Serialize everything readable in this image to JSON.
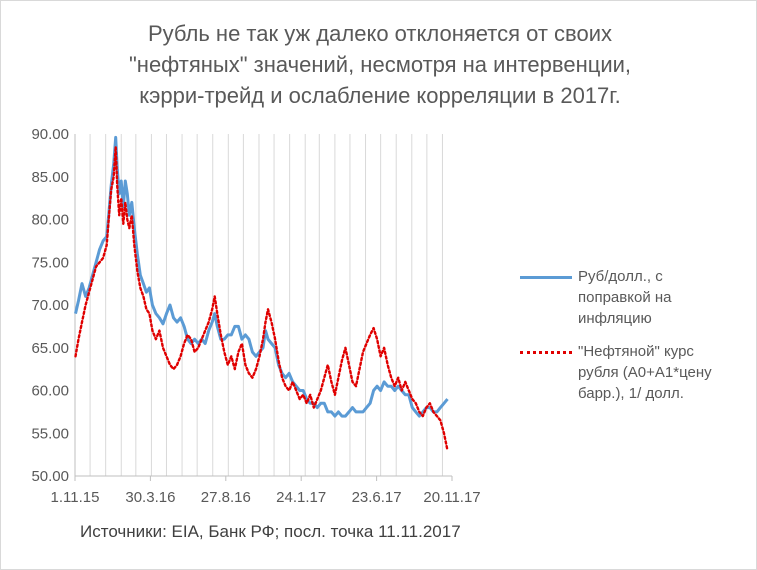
{
  "title_lines": [
    "Рубль не так уж далеко отклоняется от своих",
    "\"нефтяных\" значений, несмотря на интервенции,",
    "кэрри-трейд и ослабление корреляции в 2017г."
  ],
  "source_text": "Источники: EIA, Банк РФ; посл. точка 11.11.2017",
  "legend": {
    "series_0": [
      "Руб/долл., с",
      "поправкой на",
      "инфляцию"
    ],
    "series_1": [
      "\"Нефтяной\" курс",
      "рубля (A0+A1*цену",
      "барр.), 1/ долл."
    ]
  },
  "colors": {
    "series_0": "#5b9bd5",
    "series_1": "#e00000",
    "grid": "#d9d9d9",
    "axis": "#bfbfbf"
  },
  "chart_data": {
    "type": "line",
    "title": "Рубль не так уж далеко отклоняется от своих \"нефтяных\" значений, несмотря на интервенции, кэрри-трейд и ослабление корреляции в 2017г.",
    "xlabel": "",
    "ylabel": "",
    "ylim": [
      50,
      90
    ],
    "xlim": [
      "2015-11-01",
      "2017-11-20"
    ],
    "y_ticks": [
      "50.00",
      "55.00",
      "60.00",
      "65.00",
      "70.00",
      "75.00",
      "80.00",
      "85.00",
      "90.00"
    ],
    "x_ticks": [
      {
        "label": "1.11.15",
        "date": "2015-11-01"
      },
      {
        "label": "30.3.16",
        "date": "2016-03-30"
      },
      {
        "label": "27.8.16",
        "date": "2016-08-27"
      },
      {
        "label": "24.1.17",
        "date": "2017-01-24"
      },
      {
        "label": "23.6.17",
        "date": "2017-06-23"
      },
      {
        "label": "20.11.17",
        "date": "2017-11-20"
      }
    ],
    "grid": "vertical",
    "legend_position": "right",
    "series": [
      {
        "name": "Руб/долл., с поправкой на инфляцию",
        "style": "solid",
        "points": [
          [
            "2015-11-02",
            69.0
          ],
          [
            "2015-11-08",
            70.5
          ],
          [
            "2015-11-15",
            72.5
          ],
          [
            "2015-11-22",
            71.0
          ],
          [
            "2015-11-29",
            72.0
          ],
          [
            "2015-12-06",
            73.5
          ],
          [
            "2015-12-13",
            75.0
          ],
          [
            "2015-12-20",
            76.5
          ],
          [
            "2015-12-27",
            77.5
          ],
          [
            "2016-01-03",
            78.0
          ],
          [
            "2016-01-07",
            80.5
          ],
          [
            "2016-01-12",
            84.0
          ],
          [
            "2016-01-17",
            86.5
          ],
          [
            "2016-01-21",
            89.6
          ],
          [
            "2016-01-24",
            86.0
          ],
          [
            "2016-01-28",
            83.0
          ],
          [
            "2016-02-01",
            84.5
          ],
          [
            "2016-02-05",
            81.5
          ],
          [
            "2016-02-09",
            84.5
          ],
          [
            "2016-02-13",
            83.0
          ],
          [
            "2016-02-17",
            80.5
          ],
          [
            "2016-02-22",
            82.0
          ],
          [
            "2016-02-27",
            79.0
          ],
          [
            "2016-03-04",
            76.0
          ],
          [
            "2016-03-10",
            73.5
          ],
          [
            "2016-03-16",
            72.5
          ],
          [
            "2016-03-22",
            71.5
          ],
          [
            "2016-03-28",
            72.0
          ],
          [
            "2016-04-03",
            70.0
          ],
          [
            "2016-04-10",
            69.0
          ],
          [
            "2016-04-17",
            68.5
          ],
          [
            "2016-04-24",
            67.8
          ],
          [
            "2016-05-01",
            69.0
          ],
          [
            "2016-05-08",
            70.0
          ],
          [
            "2016-05-15",
            68.5
          ],
          [
            "2016-05-22",
            68.0
          ],
          [
            "2016-05-29",
            68.5
          ],
          [
            "2016-06-05",
            67.5
          ],
          [
            "2016-06-12",
            66.0
          ],
          [
            "2016-06-19",
            65.5
          ],
          [
            "2016-06-26",
            66.0
          ],
          [
            "2016-07-03",
            65.5
          ],
          [
            "2016-07-10",
            66.0
          ],
          [
            "2016-07-17",
            65.5
          ],
          [
            "2016-07-24",
            67.0
          ],
          [
            "2016-07-31",
            68.0
          ],
          [
            "2016-08-05",
            69.0
          ],
          [
            "2016-08-10",
            67.5
          ],
          [
            "2016-08-17",
            66.0
          ],
          [
            "2016-08-24",
            66.0
          ],
          [
            "2016-08-31",
            66.5
          ],
          [
            "2016-09-07",
            66.5
          ],
          [
            "2016-09-14",
            67.5
          ],
          [
            "2016-09-21",
            67.5
          ],
          [
            "2016-09-28",
            66.0
          ],
          [
            "2016-10-05",
            66.5
          ],
          [
            "2016-10-12",
            66.0
          ],
          [
            "2016-10-19",
            64.5
          ],
          [
            "2016-10-26",
            64.0
          ],
          [
            "2016-11-02",
            64.5
          ],
          [
            "2016-11-09",
            65.0
          ],
          [
            "2016-11-14",
            67.0
          ],
          [
            "2016-11-19",
            66.0
          ],
          [
            "2016-11-26",
            65.5
          ],
          [
            "2016-12-03",
            65.0
          ],
          [
            "2016-12-10",
            63.0
          ],
          [
            "2016-12-17",
            62.0
          ],
          [
            "2016-12-24",
            61.5
          ],
          [
            "2016-12-31",
            62.0
          ],
          [
            "2017-01-07",
            61.0
          ],
          [
            "2017-01-14",
            60.5
          ],
          [
            "2017-01-21",
            60.0
          ],
          [
            "2017-01-28",
            60.0
          ],
          [
            "2017-02-04",
            59.0
          ],
          [
            "2017-02-11",
            58.5
          ],
          [
            "2017-02-18",
            58.5
          ],
          [
            "2017-02-25",
            58.0
          ],
          [
            "2017-03-04",
            58.5
          ],
          [
            "2017-03-11",
            58.5
          ],
          [
            "2017-03-18",
            57.5
          ],
          [
            "2017-03-25",
            57.5
          ],
          [
            "2017-04-01",
            57.0
          ],
          [
            "2017-04-08",
            57.5
          ],
          [
            "2017-04-15",
            57.0
          ],
          [
            "2017-04-22",
            57.0
          ],
          [
            "2017-04-29",
            57.5
          ],
          [
            "2017-05-06",
            58.0
          ],
          [
            "2017-05-13",
            57.5
          ],
          [
            "2017-05-20",
            57.5
          ],
          [
            "2017-05-27",
            57.5
          ],
          [
            "2017-06-03",
            58.0
          ],
          [
            "2017-06-10",
            58.5
          ],
          [
            "2017-06-17",
            60.0
          ],
          [
            "2017-06-24",
            60.5
          ],
          [
            "2017-07-01",
            60.0
          ],
          [
            "2017-07-08",
            61.0
          ],
          [
            "2017-07-15",
            60.5
          ],
          [
            "2017-07-22",
            60.5
          ],
          [
            "2017-07-29",
            60.0
          ],
          [
            "2017-08-05",
            60.5
          ],
          [
            "2017-08-12",
            60.0
          ],
          [
            "2017-08-19",
            59.5
          ],
          [
            "2017-08-26",
            59.5
          ],
          [
            "2017-09-02",
            58.0
          ],
          [
            "2017-09-09",
            57.5
          ],
          [
            "2017-09-16",
            57.0
          ],
          [
            "2017-09-23",
            57.5
          ],
          [
            "2017-09-30",
            58.0
          ],
          [
            "2017-10-07",
            58.0
          ],
          [
            "2017-10-14",
            57.5
          ],
          [
            "2017-10-21",
            57.5
          ],
          [
            "2017-10-28",
            58.0
          ],
          [
            "2017-11-04",
            58.5
          ],
          [
            "2017-11-11",
            59.0
          ]
        ]
      },
      {
        "name": "\"Нефтяной\" курс рубля (A0+A1*цену барр.), 1/ долл.",
        "style": "dotted",
        "points": [
          [
            "2015-11-02",
            64.0
          ],
          [
            "2015-11-08",
            66.0
          ],
          [
            "2015-11-15",
            68.0
          ],
          [
            "2015-11-22",
            70.0
          ],
          [
            "2015-11-29",
            71.5
          ],
          [
            "2015-12-06",
            73.0
          ],
          [
            "2015-12-13",
            74.5
          ],
          [
            "2015-12-20",
            75.0
          ],
          [
            "2015-12-27",
            75.5
          ],
          [
            "2016-01-03",
            77.0
          ],
          [
            "2016-01-07",
            80.0
          ],
          [
            "2016-01-12",
            83.5
          ],
          [
            "2016-01-17",
            85.0
          ],
          [
            "2016-01-21",
            88.5
          ],
          [
            "2016-01-24",
            84.0
          ],
          [
            "2016-01-28",
            80.5
          ],
          [
            "2016-02-01",
            82.5
          ],
          [
            "2016-02-05",
            79.5
          ],
          [
            "2016-02-09",
            82.0
          ],
          [
            "2016-02-13",
            80.0
          ],
          [
            "2016-02-17",
            79.0
          ],
          [
            "2016-02-22",
            80.5
          ],
          [
            "2016-02-27",
            77.0
          ],
          [
            "2016-03-04",
            74.0
          ],
          [
            "2016-03-10",
            72.0
          ],
          [
            "2016-03-16",
            71.0
          ],
          [
            "2016-03-22",
            69.5
          ],
          [
            "2016-03-28",
            69.0
          ],
          [
            "2016-04-03",
            67.0
          ],
          [
            "2016-04-10",
            66.0
          ],
          [
            "2016-04-17",
            67.0
          ],
          [
            "2016-04-24",
            65.0
          ],
          [
            "2016-05-01",
            64.0
          ],
          [
            "2016-05-08",
            63.0
          ],
          [
            "2016-05-15",
            62.5
          ],
          [
            "2016-05-22",
            63.0
          ],
          [
            "2016-05-29",
            64.0
          ],
          [
            "2016-06-05",
            65.5
          ],
          [
            "2016-06-12",
            66.5
          ],
          [
            "2016-06-19",
            66.0
          ],
          [
            "2016-06-26",
            64.5
          ],
          [
            "2016-07-03",
            65.0
          ],
          [
            "2016-07-10",
            66.0
          ],
          [
            "2016-07-17",
            67.0
          ],
          [
            "2016-07-24",
            68.0
          ],
          [
            "2016-07-31",
            69.5
          ],
          [
            "2016-08-05",
            71.0
          ],
          [
            "2016-08-10",
            69.0
          ],
          [
            "2016-08-17",
            66.5
          ],
          [
            "2016-08-24",
            64.5
          ],
          [
            "2016-08-31",
            63.0
          ],
          [
            "2016-09-07",
            64.0
          ],
          [
            "2016-09-14",
            62.5
          ],
          [
            "2016-09-21",
            64.5
          ],
          [
            "2016-09-28",
            65.5
          ],
          [
            "2016-10-05",
            63.0
          ],
          [
            "2016-10-12",
            62.0
          ],
          [
            "2016-10-19",
            61.5
          ],
          [
            "2016-10-26",
            62.5
          ],
          [
            "2016-11-02",
            64.0
          ],
          [
            "2016-11-09",
            66.0
          ],
          [
            "2016-11-14",
            68.0
          ],
          [
            "2016-11-19",
            69.5
          ],
          [
            "2016-11-26",
            68.0
          ],
          [
            "2016-12-03",
            66.0
          ],
          [
            "2016-12-10",
            63.5
          ],
          [
            "2016-12-17",
            61.5
          ],
          [
            "2016-12-24",
            60.5
          ],
          [
            "2016-12-31",
            60.0
          ],
          [
            "2017-01-07",
            61.0
          ],
          [
            "2017-01-14",
            60.0
          ],
          [
            "2017-01-21",
            59.0
          ],
          [
            "2017-01-28",
            59.5
          ],
          [
            "2017-02-04",
            58.5
          ],
          [
            "2017-02-11",
            59.5
          ],
          [
            "2017-02-18",
            58.0
          ],
          [
            "2017-02-25",
            59.0
          ],
          [
            "2017-03-04",
            60.0
          ],
          [
            "2017-03-11",
            61.5
          ],
          [
            "2017-03-18",
            63.0
          ],
          [
            "2017-03-25",
            61.0
          ],
          [
            "2017-04-01",
            59.5
          ],
          [
            "2017-04-08",
            61.5
          ],
          [
            "2017-04-15",
            63.5
          ],
          [
            "2017-04-22",
            65.0
          ],
          [
            "2017-04-29",
            63.0
          ],
          [
            "2017-05-06",
            61.0
          ],
          [
            "2017-05-13",
            60.5
          ],
          [
            "2017-05-20",
            62.5
          ],
          [
            "2017-05-27",
            64.5
          ],
          [
            "2017-06-03",
            65.5
          ],
          [
            "2017-06-10",
            66.5
          ],
          [
            "2017-06-17",
            67.3
          ],
          [
            "2017-06-24",
            66.0
          ],
          [
            "2017-07-01",
            64.0
          ],
          [
            "2017-07-08",
            65.0
          ],
          [
            "2017-07-15",
            63.0
          ],
          [
            "2017-07-22",
            61.5
          ],
          [
            "2017-07-29",
            60.5
          ],
          [
            "2017-08-05",
            61.5
          ],
          [
            "2017-08-12",
            60.0
          ],
          [
            "2017-08-19",
            61.0
          ],
          [
            "2017-08-26",
            60.0
          ],
          [
            "2017-09-02",
            59.0
          ],
          [
            "2017-09-09",
            58.5
          ],
          [
            "2017-09-16",
            57.5
          ],
          [
            "2017-09-23",
            57.0
          ],
          [
            "2017-09-30",
            58.0
          ],
          [
            "2017-10-07",
            58.5
          ],
          [
            "2017-10-14",
            57.5
          ],
          [
            "2017-10-21",
            57.0
          ],
          [
            "2017-10-28",
            56.5
          ],
          [
            "2017-11-04",
            55.0
          ],
          [
            "2017-11-11",
            53.0
          ]
        ]
      }
    ]
  }
}
